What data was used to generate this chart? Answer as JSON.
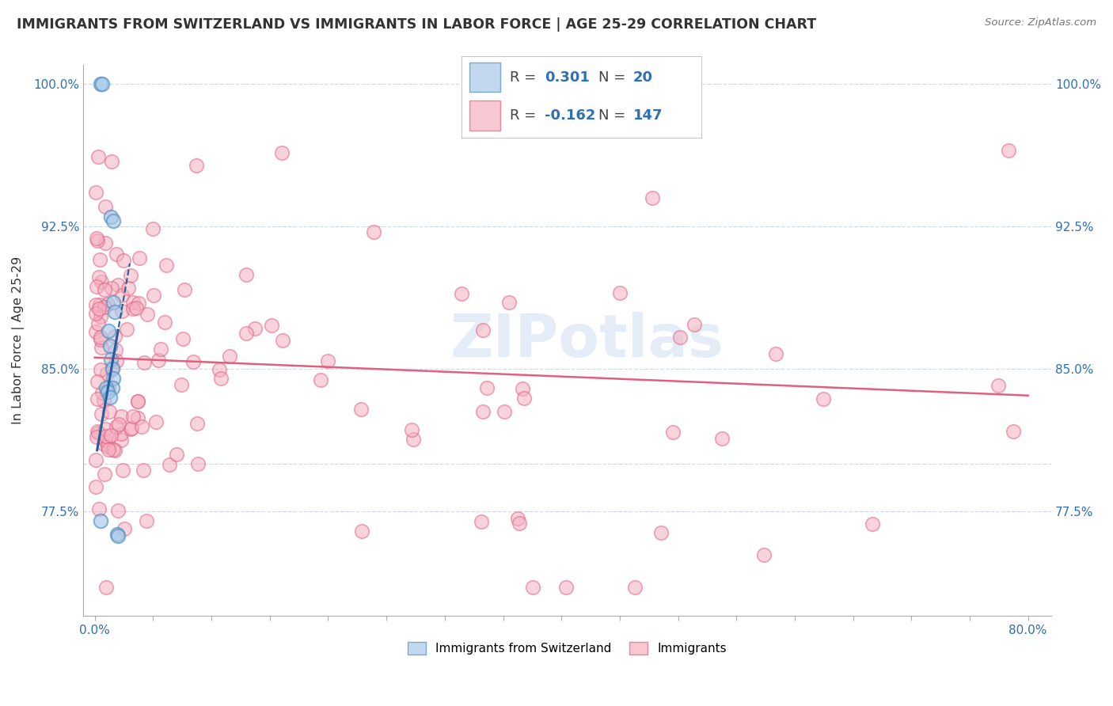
{
  "title": "IMMIGRANTS FROM SWITZERLAND VS IMMIGRANTS IN LABOR FORCE | AGE 25-29 CORRELATION CHART",
  "source_text": "Source: ZipAtlas.com",
  "ylabel": "In Labor Force | Age 25-29",
  "watermark": "ZIPotlas",
  "xlim": [
    -0.01,
    0.82
  ],
  "ylim": [
    0.72,
    1.01
  ],
  "ytick_positions": [
    0.775,
    0.8,
    0.85,
    0.925,
    1.0
  ],
  "ytick_labels": [
    "77.5%",
    "",
    "85.0%",
    "92.5%",
    "100.0%"
  ],
  "legend_R1": "0.301",
  "legend_N1": "20",
  "legend_R2": "-0.162",
  "legend_N2": "147",
  "blue_fill": "#a8c8e8",
  "blue_edge": "#5090c0",
  "pink_fill": "#f4b0c0",
  "pink_edge": "#e06080",
  "blue_line_color": "#2060a0",
  "pink_line_color": "#e06080",
  "grid_color": "#d0d8e0",
  "background_color": "#ffffff",
  "tick_color": "#3070b3",
  "title_color": "#333333",
  "source_color": "#777777"
}
